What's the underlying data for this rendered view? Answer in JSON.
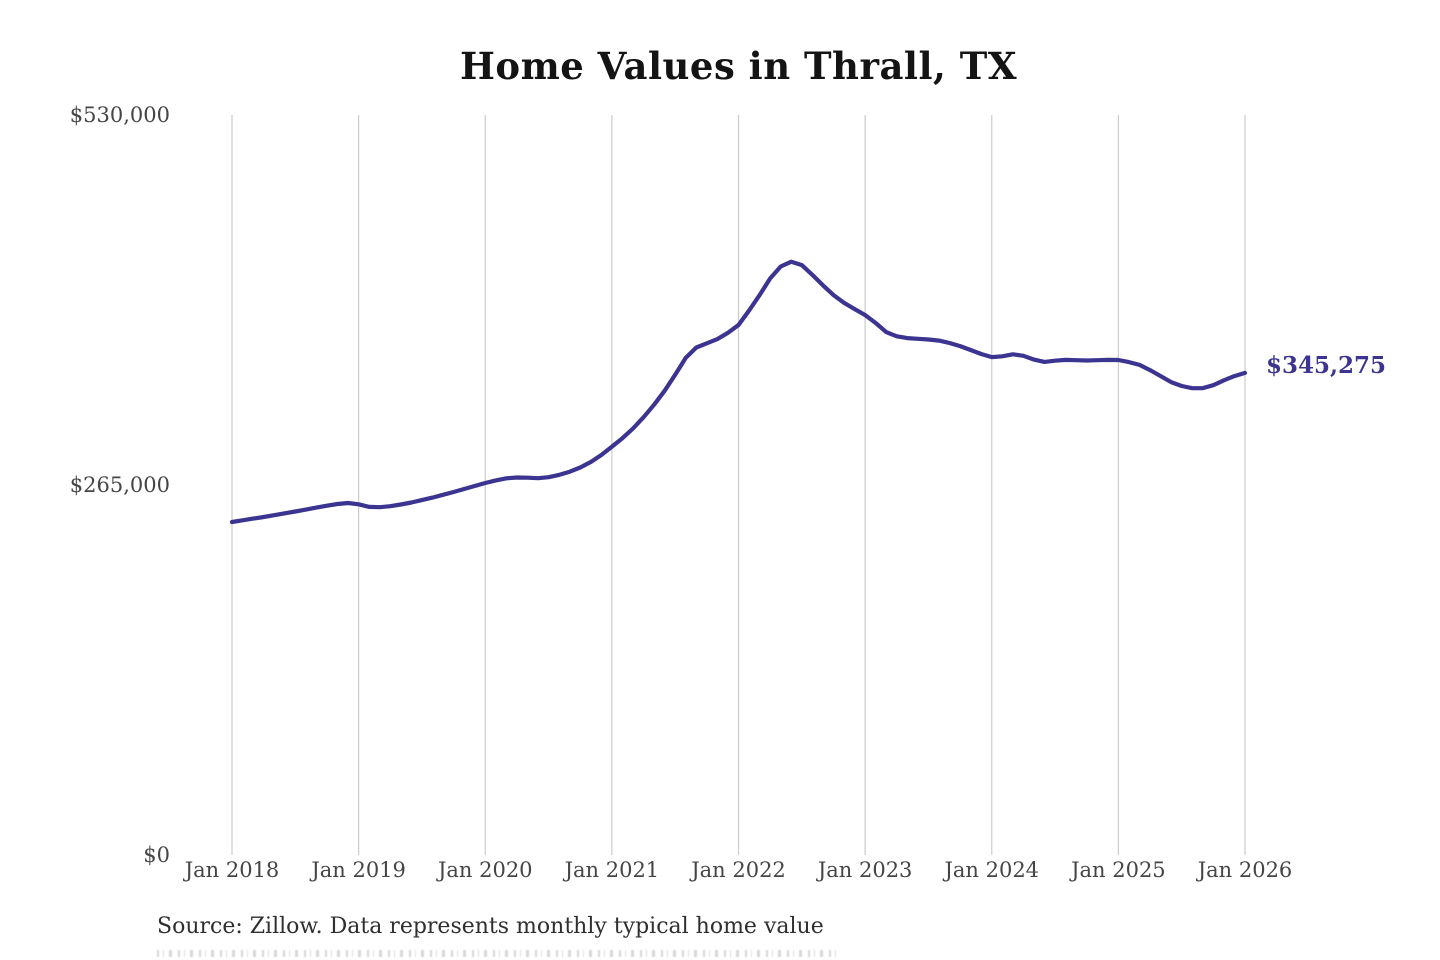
{
  "chart_data": {
    "type": "line",
    "title": "Home Values in Thrall, TX",
    "xlabel": "",
    "ylabel": "",
    "x_unit": "month",
    "x_start_label": "Jan 2018",
    "x_end_label": "Jan 2026",
    "x_tick_labels": [
      "Jan 2018",
      "Jan 2019",
      "Jan 2020",
      "Jan 2021",
      "Jan 2022",
      "Jan 2023",
      "Jan 2024",
      "Jan 2025",
      "Jan 2026"
    ],
    "y_tick_labels": [
      "$530,000",
      "$265,000",
      "$0"
    ],
    "y_tick_values": [
      530000,
      265000,
      0
    ],
    "ylim": [
      0,
      530000
    ],
    "grid": "vertical-only",
    "legend": "none",
    "colors": {
      "line": "#3b3490",
      "grid": "#cccccc",
      "axis_text": "#454545",
      "title_text": "#141414",
      "end_label_text": "#3b3490",
      "source_text": "#2f2f2f"
    },
    "series": [
      {
        "name": "Monthly typical home value",
        "color": "#3b3490",
        "values": [
          238500,
          239700,
          240900,
          242100,
          243400,
          244700,
          246000,
          247400,
          248800,
          250200,
          251400,
          252100,
          251200,
          249300,
          249100,
          249800,
          251000,
          252500,
          254200,
          256000,
          258000,
          260000,
          262100,
          264300,
          266400,
          268300,
          269800,
          270400,
          270200,
          269900,
          270600,
          272200,
          274500,
          277500,
          281500,
          286500,
          292400,
          298500,
          305500,
          313500,
          322500,
          332500,
          344000,
          356000,
          363500,
          366500,
          369500,
          374000,
          379600,
          390000,
          401000,
          413000,
          421500,
          424900,
          422500,
          415500,
          408000,
          401000,
          395500,
          391000,
          386700,
          381000,
          374500,
          371500,
          370200,
          369700,
          369200,
          368400,
          366700,
          364500,
          361700,
          358800,
          356600,
          357200,
          358600,
          357500,
          354800,
          353200,
          354000,
          354600,
          354400,
          354200,
          354400,
          354600,
          354500,
          353000,
          351000,
          347300,
          343000,
          338700,
          335900,
          334300,
          334400,
          336500,
          340000,
          343000,
          345275
        ]
      }
    ],
    "end_value": 345275,
    "end_value_label": "$345,275",
    "source_note": "Source: Zillow. Data represents monthly typical home value"
  }
}
